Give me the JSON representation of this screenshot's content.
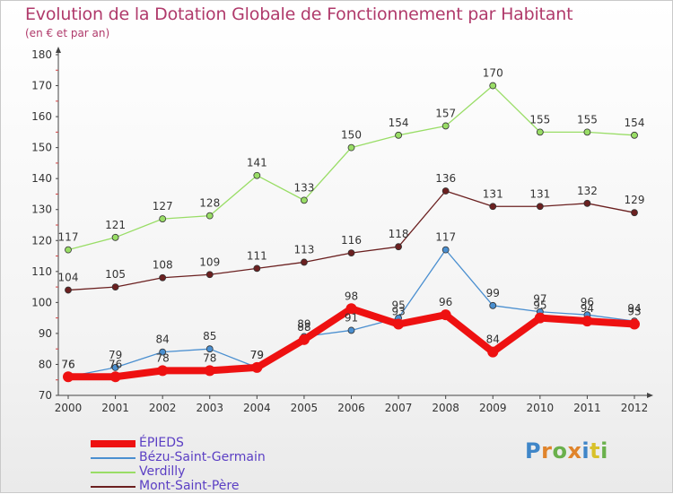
{
  "title": "Evolution de la Dotation Globale de Fonctionnement par Habitant",
  "subtitle": "(en € et par an)",
  "brand": {
    "letters": [
      "P",
      "r",
      "o",
      "x",
      "i",
      "t",
      "i"
    ],
    "colors": [
      "#3f86c8",
      "#e0842b",
      "#6ab04c",
      "#e0842b",
      "#3f86c8",
      "#d8c12a",
      "#6ab04c"
    ]
  },
  "chart_data": {
    "type": "line",
    "title": "Evolution de la Dotation Globale de Fonctionnement par Habitant",
    "subtitle": "(en € et par an)",
    "x": [
      "2000",
      "2001",
      "2002",
      "2003",
      "2004",
      "2005",
      "2006",
      "2007",
      "2008",
      "2009",
      "2010",
      "2011",
      "2012"
    ],
    "ylim": [
      70,
      180
    ],
    "yticks": [
      70,
      80,
      90,
      100,
      110,
      120,
      130,
      140,
      150,
      160,
      170,
      180
    ],
    "grid": false,
    "legend_position": "bottom-left",
    "series": [
      {
        "name": "ÉPIEDS",
        "color": "#ee1111",
        "values": [
          76,
          76,
          78,
          78,
          79,
          88,
          98,
          93,
          96,
          84,
          95,
          94,
          93
        ]
      },
      {
        "name": "Bézu-Saint-Germain",
        "color": "#4a8fd0",
        "values": [
          76,
          79,
          84,
          85,
          79,
          89,
          91,
          95,
          117,
          99,
          97,
          96,
          94
        ]
      },
      {
        "name": "Verdilly",
        "color": "#99dd66",
        "values": [
          117,
          121,
          127,
          128,
          141,
          133,
          150,
          154,
          157,
          170,
          155,
          155,
          154
        ]
      },
      {
        "name": "Mont-Saint-Père",
        "color": "#6b2020",
        "values": [
          104,
          105,
          108,
          109,
          111,
          113,
          116,
          118,
          136,
          131,
          131,
          132,
          129
        ]
      }
    ]
  }
}
